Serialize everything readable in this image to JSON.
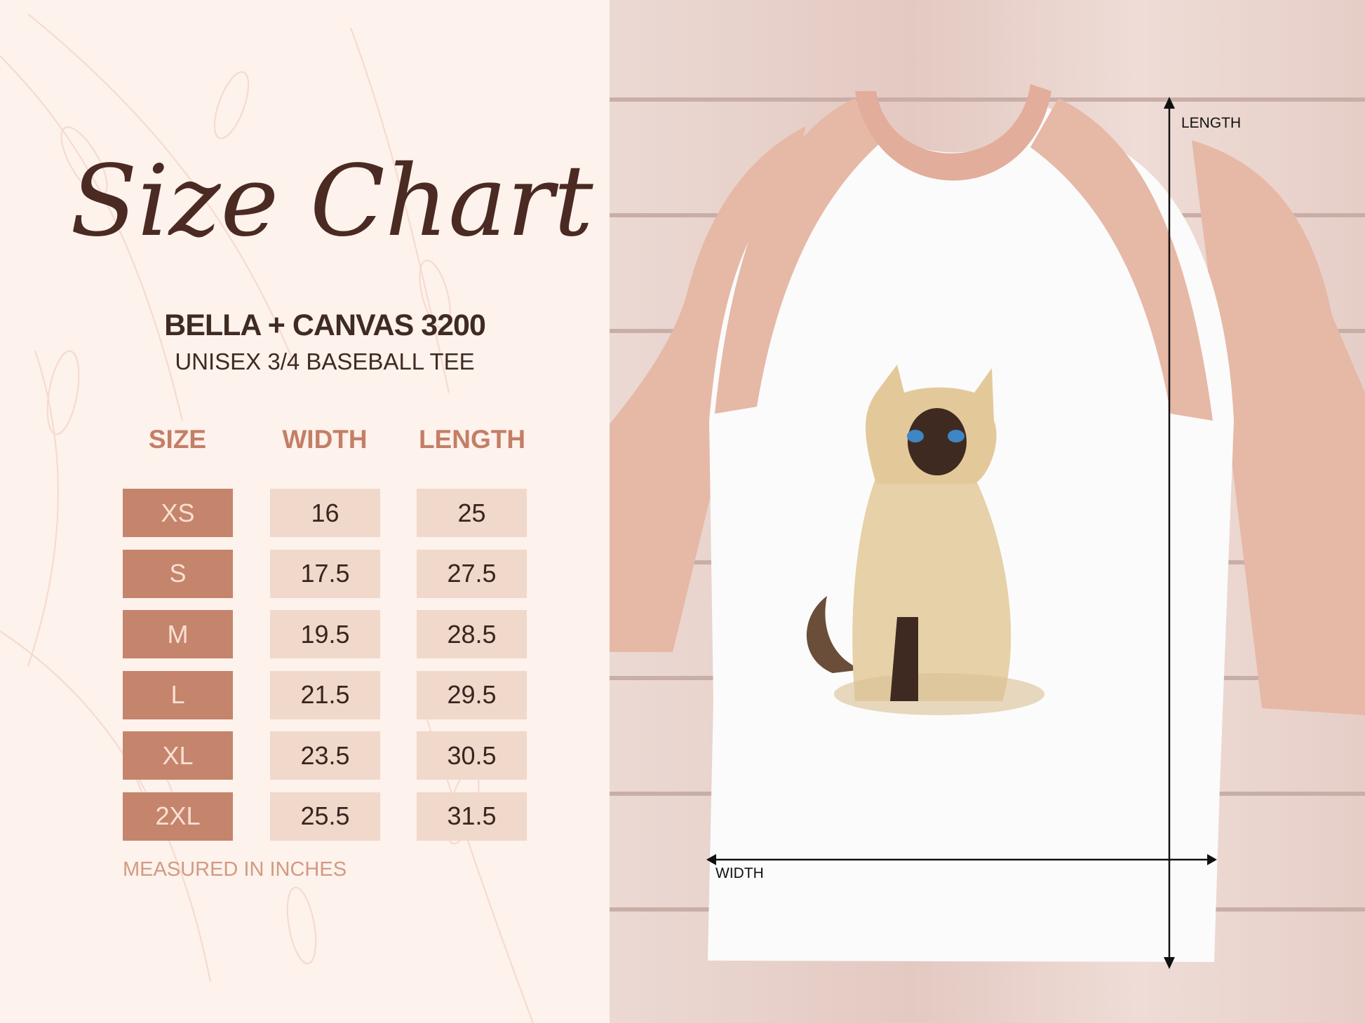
{
  "title": "Size Chart",
  "brand": "BELLA + CANVAS 3200",
  "product": "UNISEX 3/4 BASEBALL TEE",
  "table": {
    "headers": [
      "SIZE",
      "WIDTH",
      "LENGTH"
    ],
    "rows": [
      {
        "size": "XS",
        "width": "16",
        "length": "25"
      },
      {
        "size": "S",
        "width": "17.5",
        "length": "27.5"
      },
      {
        "size": "M",
        "width": "19.5",
        "length": "28.5"
      },
      {
        "size": "L",
        "width": "21.5",
        "length": "29.5"
      },
      {
        "size": "XL",
        "width": "23.5",
        "length": "30.5"
      },
      {
        "size": "2XL",
        "width": "25.5",
        "length": "31.5"
      }
    ]
  },
  "note": "MEASURED IN INCHES",
  "diagram": {
    "length_label": "LENGTH",
    "width_label": "WIDTH"
  },
  "colors": {
    "size_cell": "#c5846c",
    "value_cell": "#f0d8ca",
    "header": "#c47e66",
    "sleeve": "#e8b8a6",
    "title": "#4a2a22"
  }
}
